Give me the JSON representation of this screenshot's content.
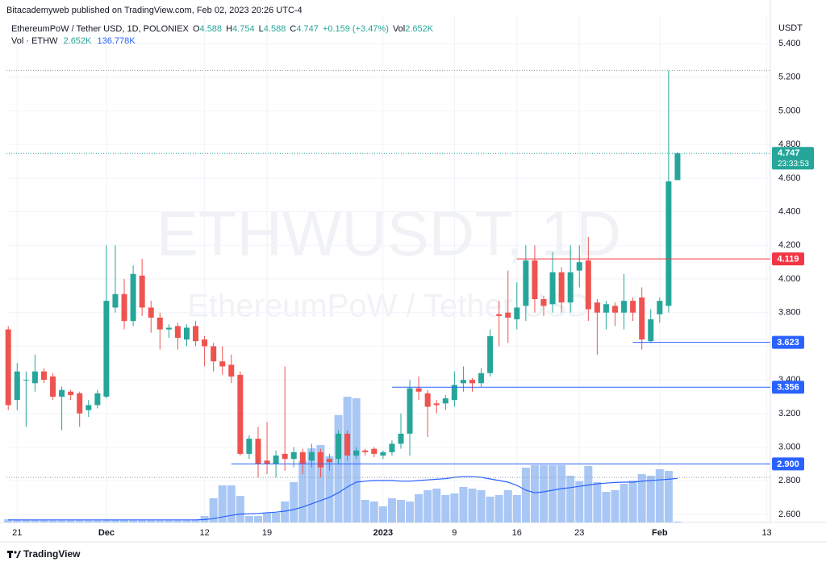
{
  "header": {
    "publisher": "Bitacademyweb published on TradingView.com, Feb 02, 2023 20:26 UTC-4"
  },
  "legend": {
    "symbol": "EthereumPoW / Tether USD, 1D, POLONIEX",
    "open_key": "O",
    "high_key": "H",
    "low_key": "L",
    "close_key": "C",
    "change": "+0.159 (+3.47%)",
    "volume_key": "Vol",
    "volume": "2.652K",
    "volume_study": "Vol · ETHW",
    "volume_value": "2.652K",
    "volume_ma": "136.778K"
  },
  "watermark": {
    "symbol": "ETHWUSDT, 1D",
    "description": "EthereumPoW / Tether USD"
  },
  "footer": {
    "brand": "TradingView"
  },
  "chart_data": {
    "type": "candlestick",
    "currency": "USDT",
    "up_color": "#26a69a",
    "down_color": "#ef5350",
    "volume_color": "#a9c7f5",
    "ma_color": "#2962ff",
    "grid": true,
    "x": [
      0,
      1,
      2,
      3,
      4,
      5,
      6,
      7,
      8,
      9,
      10,
      11,
      12,
      13,
      14,
      15,
      16,
      17,
      18,
      19,
      20,
      21,
      22,
      23,
      24,
      25,
      26,
      27,
      28,
      29,
      30,
      31,
      32,
      33,
      34,
      35,
      36,
      37,
      38,
      39,
      40,
      41,
      42,
      43,
      44,
      45,
      46,
      47,
      48,
      49,
      50,
      51,
      52,
      53,
      54,
      55,
      56,
      57,
      58,
      59,
      60,
      61,
      62,
      63,
      64,
      65,
      66,
      67,
      68,
      69,
      70,
      71,
      72,
      73,
      74,
      75
    ],
    "open": [
      3.7,
      3.28,
      3.4,
      3.38,
      3.45,
      3.42,
      3.3,
      3.33,
      3.32,
      3.22,
      3.25,
      3.3,
      3.83,
      3.91,
      3.75,
      4.02,
      3.83,
      3.77,
      3.7,
      3.72,
      3.64,
      3.72,
      3.64,
      3.6,
      3.51,
      3.49,
      3.43,
      2.96,
      3.05,
      2.92,
      2.9,
      2.96,
      2.93,
      2.97,
      2.92,
      2.97,
      2.93,
      2.93,
      3.08,
      2.95,
      2.98,
      2.99,
      2.95,
      2.97,
      3.02,
      3.08,
      3.35,
      3.32,
      3.26,
      3.26,
      3.28,
      3.38,
      3.4,
      3.38,
      3.44,
      3.79,
      3.8,
      3.76,
      3.84,
      4.11,
      3.88,
      3.85,
      4.04,
      3.86,
      4.05,
      4.11,
      3.86,
      3.8,
      3.84,
      3.8,
      3.87,
      3.89,
      3.63,
      3.79,
      3.84,
      4.588
    ],
    "high": [
      3.72,
      3.5,
      3.45,
      3.55,
      3.47,
      3.44,
      3.36,
      3.34,
      3.33,
      3.28,
      3.34,
      4.2,
      4.2,
      4.0,
      4.08,
      4.12,
      3.87,
      3.8,
      3.73,
      3.74,
      3.73,
      3.75,
      3.66,
      3.62,
      3.6,
      3.55,
      3.45,
      3.07,
      3.12,
      3.15,
      2.98,
      3.48,
      3.0,
      2.99,
      3.02,
      2.99,
      2.96,
      3.1,
      3.1,
      3.0,
      2.99,
      3.0,
      2.98,
      3.04,
      3.2,
      3.4,
      3.42,
      3.34,
      3.28,
      3.31,
      3.45,
      3.48,
      3.41,
      3.47,
      3.7,
      3.87,
      4.05,
      3.98,
      4.2,
      4.2,
      3.9,
      4.16,
      4.07,
      4.2,
      4.2,
      4.25,
      3.88,
      3.87,
      3.86,
      4.03,
      3.89,
      3.95,
      3.82,
      3.89,
      5.24,
      4.754
    ],
    "low": [
      3.22,
      3.22,
      3.12,
      3.33,
      3.38,
      3.28,
      3.1,
      3.28,
      3.12,
      3.18,
      3.23,
      3.29,
      3.8,
      3.7,
      3.72,
      3.78,
      3.68,
      3.58,
      3.65,
      3.58,
      3.6,
      3.6,
      3.48,
      3.45,
      3.43,
      3.38,
      2.95,
      2.93,
      2.82,
      2.84,
      2.82,
      2.86,
      2.88,
      2.84,
      2.88,
      2.82,
      2.86,
      2.9,
      2.92,
      2.93,
      2.95,
      2.94,
      2.93,
      2.95,
      2.99,
      2.95,
      3.28,
      3.06,
      3.2,
      3.22,
      3.24,
      3.33,
      3.33,
      3.36,
      3.42,
      3.6,
      3.62,
      3.7,
      3.75,
      3.8,
      3.78,
      3.8,
      3.8,
      3.8,
      3.95,
      3.75,
      3.55,
      3.7,
      3.72,
      3.7,
      3.75,
      3.58,
      3.62,
      3.74,
      3.8,
      4.588
    ],
    "close": [
      3.25,
      3.45,
      3.4,
      3.45,
      3.4,
      3.3,
      3.34,
      3.31,
      3.2,
      3.25,
      3.32,
      3.87,
      3.91,
      3.75,
      4.03,
      3.83,
      3.77,
      3.7,
      3.71,
      3.65,
      3.71,
      3.63,
      3.6,
      3.51,
      3.48,
      3.42,
      2.96,
      3.05,
      2.9,
      2.9,
      2.95,
      2.93,
      2.97,
      2.9,
      2.97,
      2.88,
      2.91,
      3.08,
      2.95,
      2.98,
      2.97,
      2.96,
      2.97,
      3.02,
      3.08,
      3.35,
      3.33,
      3.24,
      3.25,
      3.29,
      3.37,
      3.4,
      3.38,
      3.44,
      3.66,
      3.78,
      3.77,
      3.83,
      4.11,
      3.88,
      3.84,
      4.04,
      3.86,
      4.04,
      4.1,
      3.82,
      3.8,
      3.85,
      3.8,
      3.87,
      3.8,
      3.64,
      3.76,
      3.87,
      4.58,
      4.747
    ],
    "volume": [
      10,
      9,
      8,
      8,
      8,
      7,
      7,
      7,
      8,
      7,
      7,
      8,
      8,
      8,
      7,
      7,
      7,
      7,
      7,
      7,
      7,
      8,
      20,
      75,
      115,
      115,
      82,
      20,
      20,
      28,
      30,
      65,
      125,
      190,
      230,
      240,
      205,
      333,
      390,
      385,
      70,
      65,
      50,
      75,
      70,
      65,
      88,
      100,
      105,
      85,
      90,
      110,
      105,
      100,
      80,
      85,
      100,
      85,
      170,
      178,
      178,
      178,
      178,
      145,
      128,
      175,
      125,
      95,
      100,
      120,
      130,
      150,
      145,
      165,
      160,
      2.652
    ],
    "volume_ma": [
      8,
      8,
      8,
      8,
      8,
      8,
      8,
      8,
      8,
      8,
      8,
      8,
      8,
      8,
      8,
      8,
      8,
      8,
      8,
      8,
      8,
      8,
      9,
      12,
      17,
      22,
      26,
      27,
      28,
      30,
      32,
      35,
      40,
      48,
      58,
      68,
      78,
      92,
      110,
      125,
      128,
      130,
      130,
      130,
      128,
      128,
      130,
      132,
      134,
      136,
      140,
      142,
      142,
      140,
      135,
      130,
      125,
      115,
      100,
      92,
      95,
      100,
      105,
      108,
      112,
      116,
      120,
      122,
      124,
      125,
      125,
      128,
      130,
      132,
      134,
      136.778
    ],
    "xlim": [
      -0.2,
      85.4
    ],
    "xticks": [
      {
        "value": 1,
        "label": "21"
      },
      {
        "value": 11,
        "label": "Dec"
      },
      {
        "value": 22,
        "label": "12"
      },
      {
        "value": 29,
        "label": "19"
      },
      {
        "value": 42,
        "label": "2023"
      },
      {
        "value": 50,
        "label": "9"
      },
      {
        "value": 57,
        "label": "16"
      },
      {
        "value": 64,
        "label": "23"
      },
      {
        "value": 73,
        "label": "Feb"
      },
      {
        "value": 85,
        "label": "13"
      }
    ],
    "ylim": [
      2.552,
      5.563
    ],
    "yticks": [
      {
        "value": 2.6,
        "label": "2.600"
      },
      {
        "value": 2.8,
        "label": "2.800"
      },
      {
        "value": 3.0,
        "label": "3.000"
      },
      {
        "value": 3.2,
        "label": "3.200"
      },
      {
        "value": 3.4,
        "label": "3.400"
      },
      {
        "value": 3.6,
        "label": "3.600"
      },
      {
        "value": 3.8,
        "label": "3.800"
      },
      {
        "value": 4.0,
        "label": "4.000"
      },
      {
        "value": 4.2,
        "label": "4.200"
      },
      {
        "value": 4.4,
        "label": "4.400"
      },
      {
        "value": 4.6,
        "label": "4.600"
      },
      {
        "value": 4.8,
        "label": "4.800"
      },
      {
        "value": 5.0,
        "label": "5.000"
      },
      {
        "value": 5.2,
        "label": "5.200"
      },
      {
        "value": 5.4,
        "label": "5.400"
      }
    ],
    "price_lines": [
      {
        "value": 4.119,
        "color": "#f23645",
        "from": 57
      },
      {
        "value": 3.623,
        "color": "#2962ff",
        "from": 70
      },
      {
        "value": 3.356,
        "color": "#2962ff",
        "from": 43
      },
      {
        "value": 2.9,
        "label": "2.900",
        "color": "#2962ff",
        "from": 25
      }
    ],
    "countdown": "23:33:53"
  }
}
